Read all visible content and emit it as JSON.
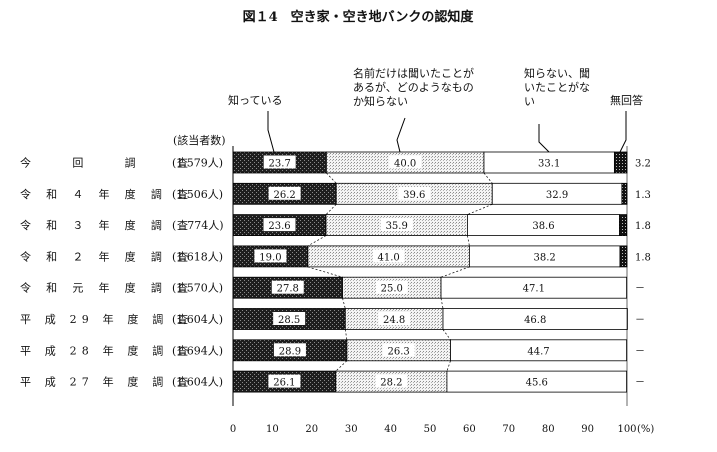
{
  "chart_data": {
    "type": "bar",
    "stacked": true,
    "orientation": "horizontal",
    "title": "図１4　空き家・空き地バンクの認知度",
    "count_header": "(該当者数)",
    "categories": [
      "今　回　調　査",
      "令 和 ４ 年 度 調 査",
      "令 和 ３ 年 度 調 査",
      "令 和 ２ 年 度 調 査",
      "令 和 元 年 度 調 査",
      "平 成 29 年 度 調 査",
      "平 成 28 年 度 調 査",
      "平 成 27 年 度 調 査"
    ],
    "counts": [
      "(1,579人)",
      "(1,506人)",
      "(　774人)",
      "(1,618人)",
      "(1,570人)",
      "(1,604人)",
      "(1,694人)",
      "(1,604人)"
    ],
    "series": [
      {
        "name": "知っている",
        "values": [
          23.7,
          26.2,
          23.6,
          19.0,
          27.8,
          28.5,
          28.9,
          26.1
        ],
        "labels": [
          "23.7",
          "26.2",
          "23.6",
          "19.0",
          "27.8",
          "28.5",
          "28.9",
          "26.1"
        ]
      },
      {
        "name": "名前だけは聞いたことがあるが、どのようなものか知らない",
        "values": [
          40.0,
          39.6,
          35.9,
          41.0,
          25.0,
          24.8,
          26.3,
          28.2
        ],
        "labels": [
          "40.0",
          "39.6",
          "35.9",
          "41.0",
          "25.0",
          "24.8",
          "26.3",
          "28.2"
        ]
      },
      {
        "name": "知らない、聞いたことがない",
        "values": [
          33.1,
          32.9,
          38.6,
          38.2,
          47.1,
          46.8,
          44.7,
          45.6
        ],
        "labels": [
          "33.1",
          "32.9",
          "38.6",
          "38.2",
          "47.1",
          "46.8",
          "44.7",
          "45.6"
        ]
      },
      {
        "name": "無回答",
        "values": [
          3.2,
          1.3,
          1.8,
          1.8,
          0,
          0,
          0,
          0
        ],
        "labels": [
          "3.2",
          "1.3",
          "1.8",
          "1.8",
          "－",
          "－",
          "－",
          "－"
        ]
      }
    ],
    "legend_lines": [
      [
        "知っている"
      ],
      [
        "名前だけは聞いたことが",
        "あるが、どのようなもの",
        "か知らない"
      ],
      [
        "知らない、聞",
        "いたことがな",
        "い"
      ],
      [
        "無回答"
      ]
    ],
    "xlim": [
      0,
      100
    ],
    "xticks": [
      "0",
      "10",
      "20",
      "30",
      "40",
      "50",
      "60",
      "70",
      "80",
      "90",
      "100"
    ],
    "x_unit": "(%)",
    "colors": [
      "#1a1a1a",
      "#d8d8d8",
      "#ffffff",
      "#1a1a1a"
    ]
  }
}
